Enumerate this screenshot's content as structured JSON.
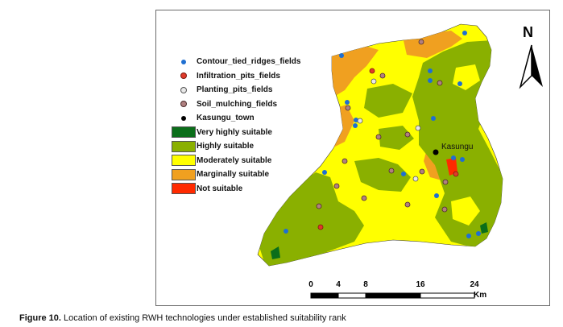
{
  "legend": {
    "points": [
      {
        "label": "Contour_tied_ridges_fields",
        "color": "#1f6fd1",
        "ring": false
      },
      {
        "label": "Infiltration_pits_fields",
        "color": "#e03a2a",
        "ring": true
      },
      {
        "label": "Planting_pits_fields",
        "color": "#9a9a9a",
        "ring": true
      },
      {
        "label": "Soil_mulching_fields",
        "color": "#7a4a4a",
        "ring": true
      },
      {
        "label": "Kasungu_town",
        "color": "#000000",
        "ring": false
      }
    ],
    "classes": [
      {
        "label": "Very highly suitable",
        "color": "#0b6e1a"
      },
      {
        "label": "Highly suitable",
        "color": "#8ab000"
      },
      {
        "label": "Moderately suitable",
        "color": "#ffff00"
      },
      {
        "label": "Marginally suitable",
        "color": "#f0a020"
      },
      {
        "label": "Not suitable",
        "color": "#ff2a00"
      }
    ]
  },
  "north_arrow": {
    "letter": "N"
  },
  "town": {
    "label": "Kasungu"
  },
  "scale_bar": {
    "ticks": [
      "0",
      "4",
      "8",
      "16",
      "24"
    ],
    "unit": "Km"
  },
  "caption": {
    "label": "Figure 10.",
    "text": "Location of existing RWH technologies under established suitability rank"
  }
}
